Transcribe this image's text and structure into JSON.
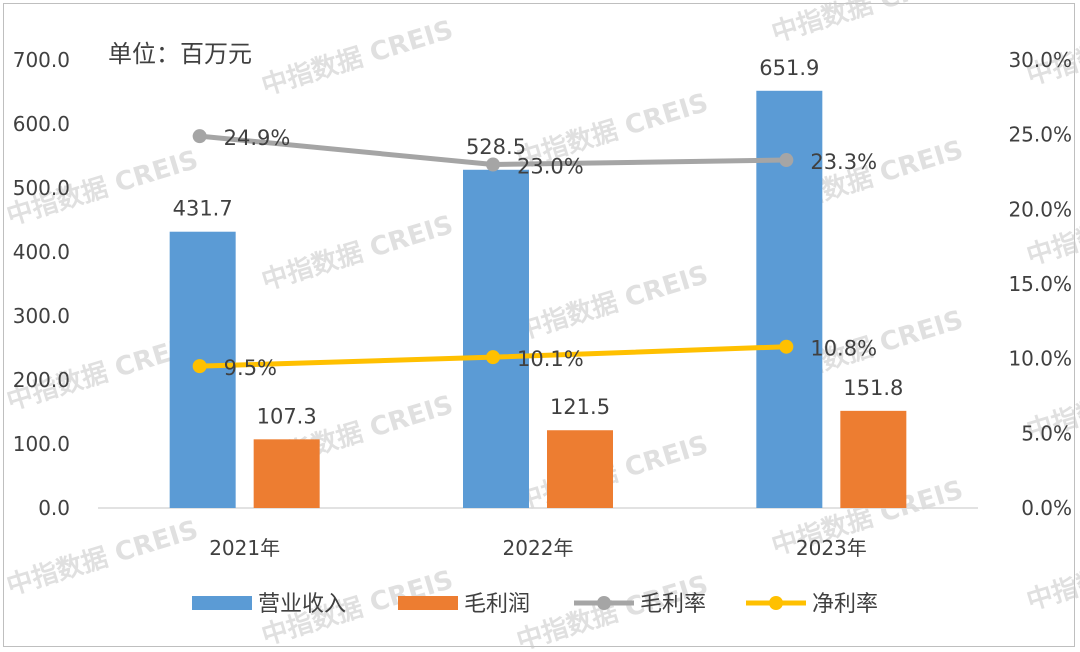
{
  "watermark": "中指数据 CREIS",
  "chart_data": {
    "type": "bar",
    "unit_label": "单位：百万元",
    "categories": [
      "2021年",
      "2022年",
      "2023年"
    ],
    "left_axis": {
      "ylim": [
        0,
        700
      ],
      "ticks": [
        "0.0",
        "100.0",
        "200.0",
        "300.0",
        "400.0",
        "500.0",
        "600.0",
        "700.0"
      ]
    },
    "right_axis": {
      "ylim": [
        0,
        30
      ],
      "ticks": [
        "0.0%",
        "5.0%",
        "10.0%",
        "15.0%",
        "20.0%",
        "25.0%",
        "30.0%"
      ]
    },
    "series": [
      {
        "name": "营业收入",
        "type": "bar",
        "axis": "left",
        "color": "#5b9bd5",
        "values": [
          431.7,
          528.5,
          651.9
        ],
        "labels": [
          "431.7",
          "528.5",
          "651.9"
        ]
      },
      {
        "name": "毛利润",
        "type": "bar",
        "axis": "left",
        "color": "#ed7d31",
        "values": [
          107.3,
          121.5,
          151.8
        ],
        "labels": [
          "107.3",
          "121.5",
          "151.8"
        ]
      },
      {
        "name": "毛利率",
        "type": "line",
        "axis": "right",
        "color": "#a5a5a5",
        "values": [
          24.9,
          23.0,
          23.3
        ],
        "labels": [
          "24.9%",
          "23.0%",
          "23.3%"
        ]
      },
      {
        "name": "净利率",
        "type": "line",
        "axis": "right",
        "color": "#ffc000",
        "values": [
          9.5,
          10.1,
          10.8
        ],
        "labels": [
          "9.5%",
          "10.1%",
          "10.8%"
        ]
      }
    ],
    "legend_position": "bottom",
    "grid": false
  }
}
